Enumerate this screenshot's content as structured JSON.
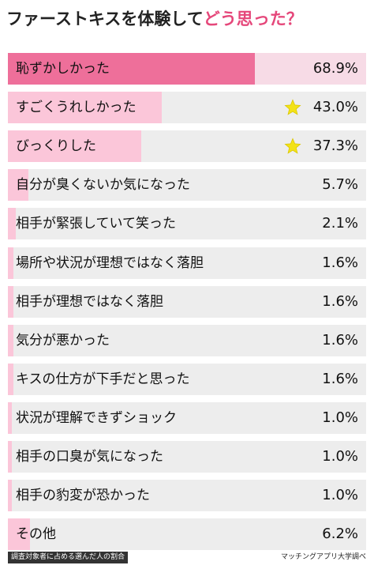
{
  "title": {
    "part1": "ファーストキスを体験して",
    "part2": "どう思った？"
  },
  "colors": {
    "highlight_bar": "#ee6f9a",
    "secondary_bar": "#fbc6d9",
    "minor_bar": "#fbc6d9",
    "row_background": "#ededed",
    "highlight_row_background": "#f7dbe6",
    "star": "#f3e216",
    "title_accent": "#e5477a"
  },
  "chart_data": {
    "type": "bar",
    "orientation": "horizontal",
    "categories": [
      "恥ずかしかった",
      "すごくうれしかった",
      "びっくりした",
      "自分が臭くないか気になった",
      "相手が緊張していて笑った",
      "場所や状況が理想ではなく落胆",
      "相手が理想ではなく落胆",
      "気分が悪かった",
      "キスの仕方が下手だと思った",
      "状況が理解できずショック",
      "相手の口臭が気になった",
      "相手の豹変が恐かった",
      "その他"
    ],
    "values": [
      68.9,
      43.0,
      37.3,
      5.7,
      2.1,
      1.6,
      1.6,
      1.6,
      1.6,
      1.0,
      1.0,
      1.0,
      6.2
    ],
    "value_labels": [
      "68.9%",
      "43.0%",
      "37.3%",
      "5.7%",
      "2.1%",
      "1.6%",
      "1.6%",
      "1.6%",
      "1.6%",
      "1.0%",
      "1.0%",
      "1.0%",
      "6.2%"
    ],
    "starred": [
      false,
      true,
      true,
      false,
      false,
      false,
      false,
      false,
      false,
      false,
      false,
      false,
      false
    ],
    "xlim": [
      0,
      100
    ],
    "unit": "%"
  },
  "footnote": "調査対象者に占める選んだ人の割合",
  "source": "マッチングアプリ大学調べ"
}
